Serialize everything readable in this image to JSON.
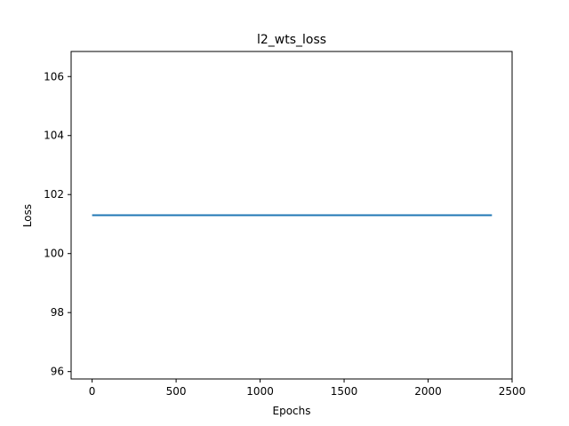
{
  "chart_data": {
    "type": "line",
    "title": "l2_wts_loss",
    "xlabel": "Epochs",
    "ylabel": "Loss",
    "xlim": [
      -125,
      2500
    ],
    "ylim": [
      95.75,
      106.85
    ],
    "xticks": [
      0,
      500,
      1000,
      1500,
      2000,
      2500
    ],
    "xtick_labels": [
      "0",
      "500",
      "1000",
      "1500",
      "2000",
      "2500"
    ],
    "yticks": [
      96,
      98,
      100,
      102,
      104,
      106
    ],
    "ytick_labels": [
      "96",
      "98",
      "100",
      "102",
      "104",
      "106"
    ],
    "grid": false,
    "legend": "none",
    "series": [
      {
        "color": "#1f77b4",
        "x": [
          0,
          2380
        ],
        "values": [
          101.3,
          101.3
        ]
      }
    ]
  }
}
